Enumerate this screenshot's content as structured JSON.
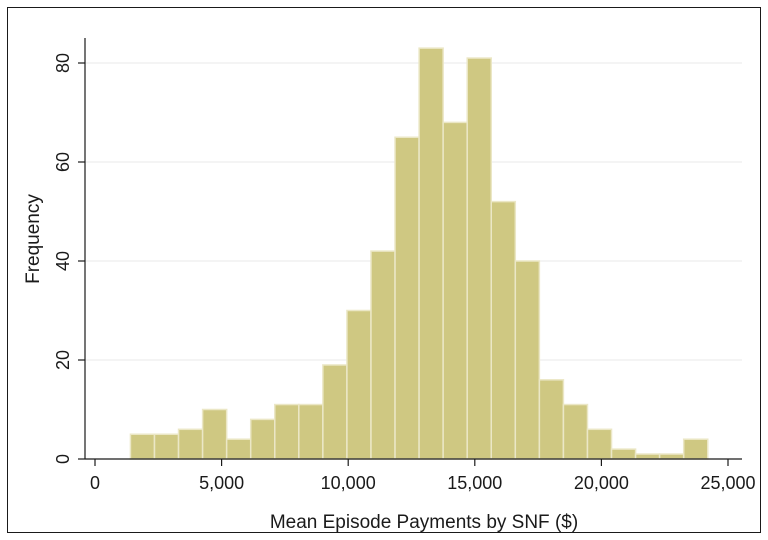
{
  "chart_data": {
    "type": "bar",
    "title": "",
    "xlabel": "Mean Episode Payments by SNF ($)",
    "ylabel": "Frequency",
    "xlim": [
      0,
      25000
    ],
    "ylim": [
      0,
      85
    ],
    "grid": "horizontal",
    "legend": "none",
    "bin_width": 950,
    "bins": [
      {
        "x0": 1400,
        "x1": 2350,
        "value": 5
      },
      {
        "x0": 2350,
        "x1": 3300,
        "value": 5
      },
      {
        "x0": 3300,
        "x1": 4250,
        "value": 6
      },
      {
        "x0": 4250,
        "x1": 5200,
        "value": 10
      },
      {
        "x0": 5200,
        "x1": 6150,
        "value": 4
      },
      {
        "x0": 6150,
        "x1": 7100,
        "value": 8
      },
      {
        "x0": 7100,
        "x1": 8050,
        "value": 11
      },
      {
        "x0": 8050,
        "x1": 9000,
        "value": 11
      },
      {
        "x0": 9000,
        "x1": 9950,
        "value": 19
      },
      {
        "x0": 9950,
        "x1": 10900,
        "value": 30
      },
      {
        "x0": 10900,
        "x1": 11850,
        "value": 42
      },
      {
        "x0": 11850,
        "x1": 12800,
        "value": 65
      },
      {
        "x0": 12800,
        "x1": 13750,
        "value": 83
      },
      {
        "x0": 13750,
        "x1": 14700,
        "value": 68
      },
      {
        "x0": 14700,
        "x1": 15650,
        "value": 81
      },
      {
        "x0": 15650,
        "x1": 16600,
        "value": 52
      },
      {
        "x0": 16600,
        "x1": 17550,
        "value": 40
      },
      {
        "x0": 17550,
        "x1": 18500,
        "value": 16
      },
      {
        "x0": 18500,
        "x1": 19450,
        "value": 11
      },
      {
        "x0": 19450,
        "x1": 20400,
        "value": 6
      },
      {
        "x0": 20400,
        "x1": 21350,
        "value": 2
      },
      {
        "x0": 21350,
        "x1": 22300,
        "value": 1
      },
      {
        "x0": 22300,
        "x1": 23250,
        "value": 1
      },
      {
        "x0": 23250,
        "x1": 24200,
        "value": 4
      }
    ],
    "x_ticks": [
      {
        "value": 0,
        "label": "0"
      },
      {
        "value": 5000,
        "label": "5,000"
      },
      {
        "value": 10000,
        "label": "10,000"
      },
      {
        "value": 15000,
        "label": "15,000"
      },
      {
        "value": 20000,
        "label": "20,000"
      },
      {
        "value": 25000,
        "label": "25,000"
      }
    ],
    "y_ticks": [
      {
        "value": 0,
        "label": "0"
      },
      {
        "value": 20,
        "label": "20"
      },
      {
        "value": 40,
        "label": "40"
      },
      {
        "value": 60,
        "label": "60"
      },
      {
        "value": 80,
        "label": "80"
      }
    ],
    "colors": {
      "bar_fill": "#cfc882",
      "bar_stroke": "#ebe7c6",
      "grid": "#eaeaea",
      "axis": "#1a1a1a"
    }
  }
}
